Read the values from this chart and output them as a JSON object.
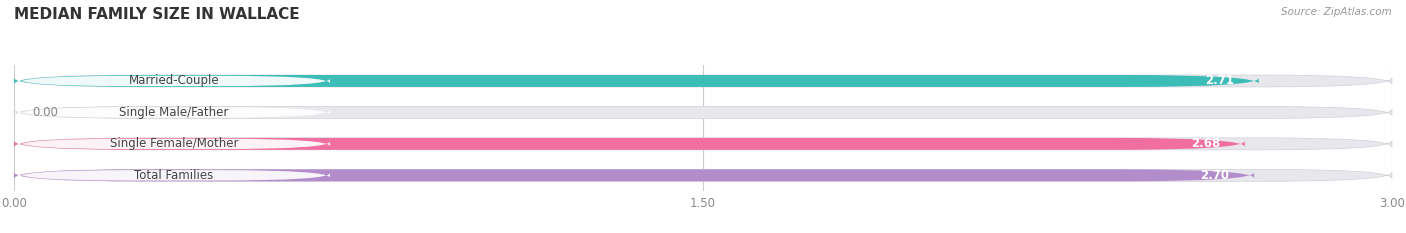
{
  "title": "MEDIAN FAMILY SIZE IN WALLACE",
  "source": "Source: ZipAtlas.com",
  "categories": [
    "Married-Couple",
    "Single Male/Father",
    "Single Female/Mother",
    "Total Families"
  ],
  "values": [
    2.71,
    0.0,
    2.68,
    2.7
  ],
  "bar_colors": [
    "#3dbdb8",
    "#aec6e8",
    "#f06fa0",
    "#b38ccc"
  ],
  "xlim": [
    0,
    3.0
  ],
  "xticks": [
    0.0,
    1.5,
    3.0
  ],
  "xtick_labels": [
    "0.00",
    "1.50",
    "3.00"
  ],
  "background_color": "#ffffff",
  "bar_background_color": "#e8e8ec",
  "title_fontsize": 11,
  "label_fontsize": 8.5,
  "value_fontsize": 8.5,
  "bar_height": 0.38,
  "bar_gap": 0.62
}
